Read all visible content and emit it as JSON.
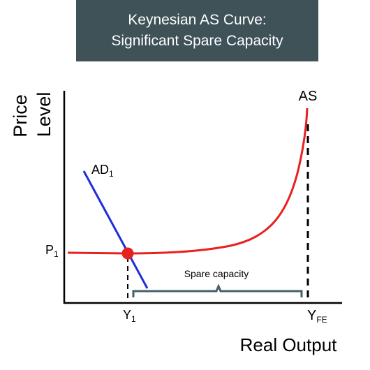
{
  "title": {
    "line1": "Keynesian AS Curve:",
    "line2": "Significant Spare Capacity"
  },
  "axes": {
    "y_label_line1": "Price",
    "y_label_line2": "Level",
    "x_label": "Real Output"
  },
  "curves": {
    "as_label": "AS",
    "ad_label_main": "AD",
    "ad_label_sub": "1"
  },
  "markers": {
    "price_label_main": "P",
    "price_label_sub": "1",
    "output_label_main": "Y",
    "output_label_sub": "1",
    "full_employment_main": "Y",
    "full_employment_sub": "FE"
  },
  "annotation": {
    "spare_capacity": "Spare capacity"
  },
  "colors": {
    "title_bg": "#3e5258",
    "as_curve": "#e8201f",
    "ad_curve": "#1f2ed8",
    "equilibrium": "#e8201f",
    "axes": "#000000",
    "bracket": "#46606a"
  }
}
